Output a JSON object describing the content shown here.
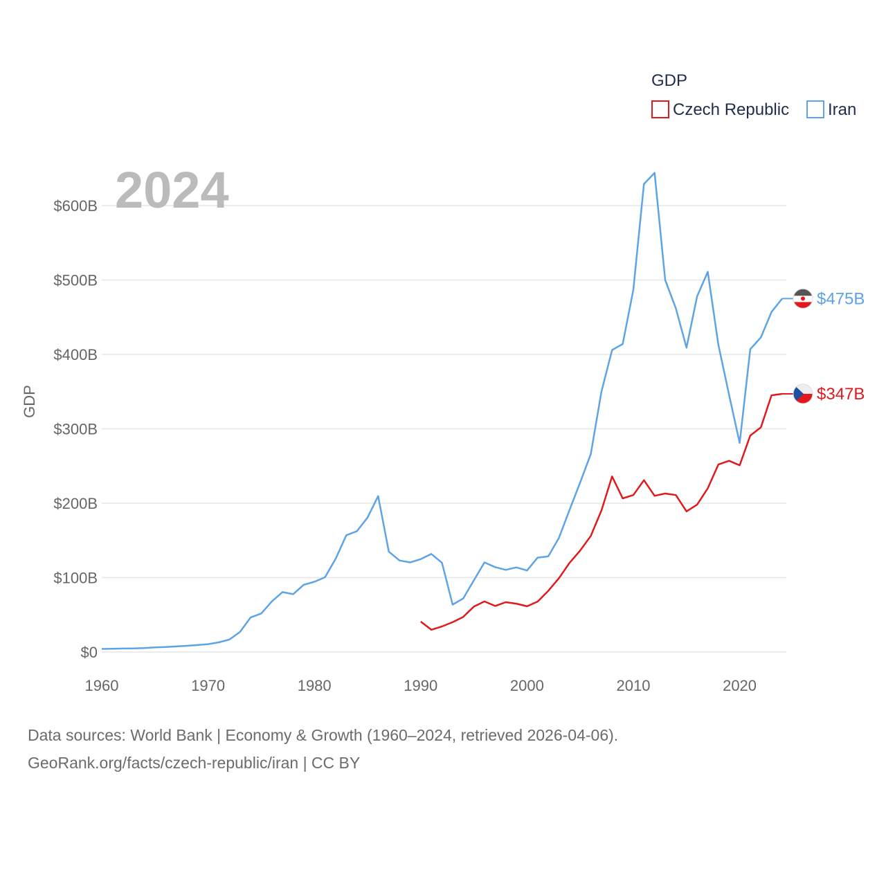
{
  "chart_data": {
    "type": "line",
    "year_label": "2024",
    "ylabel": "GDP",
    "xlim": [
      1960,
      2024
    ],
    "ylim": [
      0,
      650
    ],
    "x_ticks": [
      1960,
      1970,
      1980,
      1990,
      2000,
      2010,
      2020
    ],
    "y_ticks": [
      {
        "value": 0,
        "label": "$0"
      },
      {
        "value": 100,
        "label": "$100B"
      },
      {
        "value": 200,
        "label": "$200B"
      },
      {
        "value": 300,
        "label": "$300B"
      },
      {
        "value": 400,
        "label": "$400B"
      },
      {
        "value": 500,
        "label": "$500B"
      },
      {
        "value": 600,
        "label": "$600B"
      }
    ],
    "legend": {
      "title": "GDP",
      "placement": "top-right",
      "entries": [
        "Czech Republic",
        "Iran"
      ]
    },
    "series": [
      {
        "name": "Iran",
        "color": "#5ea3e5",
        "end_label": "$475B",
        "x": [
          1960,
          1961,
          1962,
          1963,
          1964,
          1965,
          1966,
          1967,
          1968,
          1969,
          1970,
          1971,
          1972,
          1973,
          1974,
          1975,
          1976,
          1977,
          1978,
          1979,
          1980,
          1981,
          1982,
          1983,
          1984,
          1985,
          1986,
          1987,
          1988,
          1989,
          1990,
          1991,
          1992,
          1993,
          1994,
          1995,
          1996,
          1997,
          1998,
          1999,
          2000,
          2001,
          2002,
          2003,
          2004,
          2005,
          2006,
          2007,
          2008,
          2009,
          2010,
          2011,
          2012,
          2013,
          2014,
          2015,
          2016,
          2017,
          2018,
          2019,
          2020,
          2021,
          2022,
          2023,
          2024
        ],
        "values": [
          4.2,
          4.4,
          4.7,
          4.9,
          5.4,
          6.2,
          6.8,
          7.5,
          8.4,
          9.4,
          10.6,
          13.0,
          16.7,
          27.0,
          46.4,
          51.8,
          68.1,
          80.6,
          77.8,
          90.4,
          94.4,
          100.5,
          125.3,
          156.9,
          162.4,
          180.7,
          209.6,
          135.0,
          123.1,
          120.5,
          124.8,
          131.8,
          120.0,
          63.7,
          72.0,
          96.4,
          120.5,
          114.1,
          110.4,
          113.8,
          109.6,
          126.9,
          128.6,
          153.5,
          191.0,
          228.0,
          266.0,
          350.0,
          406.0,
          414.0,
          487.0,
          629.0,
          644.0,
          500.0,
          462.0,
          409.0,
          478.0,
          511.0,
          413.0,
          346.0,
          281.0,
          407.0,
          423.0,
          457.0,
          475.0
        ]
      },
      {
        "name": "Czech Republic",
        "color": "#e0191c",
        "end_label": "$347B",
        "x": [
          1990,
          1991,
          1992,
          1993,
          1994,
          1995,
          1996,
          1997,
          1998,
          1999,
          2000,
          2001,
          2002,
          2003,
          2004,
          2005,
          2006,
          2007,
          2008,
          2009,
          2010,
          2011,
          2012,
          2013,
          2014,
          2015,
          2016,
          2017,
          2018,
          2019,
          2020,
          2021,
          2022,
          2023,
          2024
        ],
        "values": [
          40.9,
          30.0,
          34.4,
          40.1,
          47.3,
          61.0,
          68.0,
          62.0,
          67.0,
          65.0,
          61.5,
          67.8,
          82.2,
          99.3,
          119.8,
          136.5,
          156.0,
          190.2,
          236.0,
          206.5,
          211.0,
          231.0,
          210.0,
          213.0,
          211.0,
          189.0,
          198.0,
          220.0,
          252.0,
          257.0,
          251.0,
          291.0,
          302.0,
          345.0,
          347.0
        ]
      }
    ]
  },
  "source": {
    "line1": "Data sources: World Bank | Economy & Growth (1960–2024, retrieved 2026-04-06).",
    "line2": "GeoRank.org/facts/czech-republic/iran | CC BY"
  }
}
